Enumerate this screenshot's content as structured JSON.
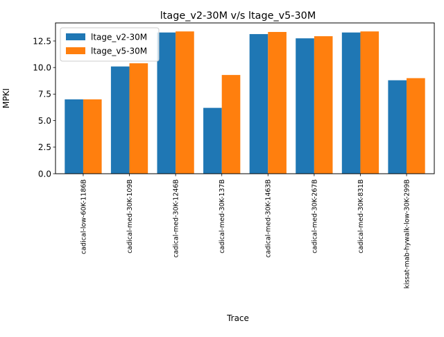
{
  "chart_data": {
    "type": "bar",
    "title": "ltage_v2-30M v/s ltage_v5-30M",
    "xlabel": "Trace",
    "ylabel": "MPKI",
    "ylim": [
      0,
      14.2
    ],
    "yticks": [
      "0.0",
      "2.5",
      "5.0",
      "7.5",
      "10.0",
      "12.5"
    ],
    "categories": [
      "cadical-low-60K-1186B",
      "cadical-med-30K-109B",
      "cadical-med-30K-1246B",
      "cadical-med-30K-137B",
      "cadical-med-30K-1463B",
      "cadical-med-30K-267B",
      "cadical-med-30K-831B",
      "kissat-mab-hywalk-low-30K-299B"
    ],
    "series": [
      {
        "name": "ltage_v2-30M",
        "color": "#1f77b4",
        "values": [
          7.0,
          10.1,
          13.3,
          6.2,
          13.15,
          12.75,
          13.3,
          8.8
        ]
      },
      {
        "name": "ltage_v5-30M",
        "color": "#ff7f0e",
        "values": [
          7.0,
          10.4,
          13.4,
          9.3,
          13.35,
          12.95,
          13.4,
          9.0
        ]
      }
    ],
    "legend_position": "top-left",
    "grid": false
  }
}
